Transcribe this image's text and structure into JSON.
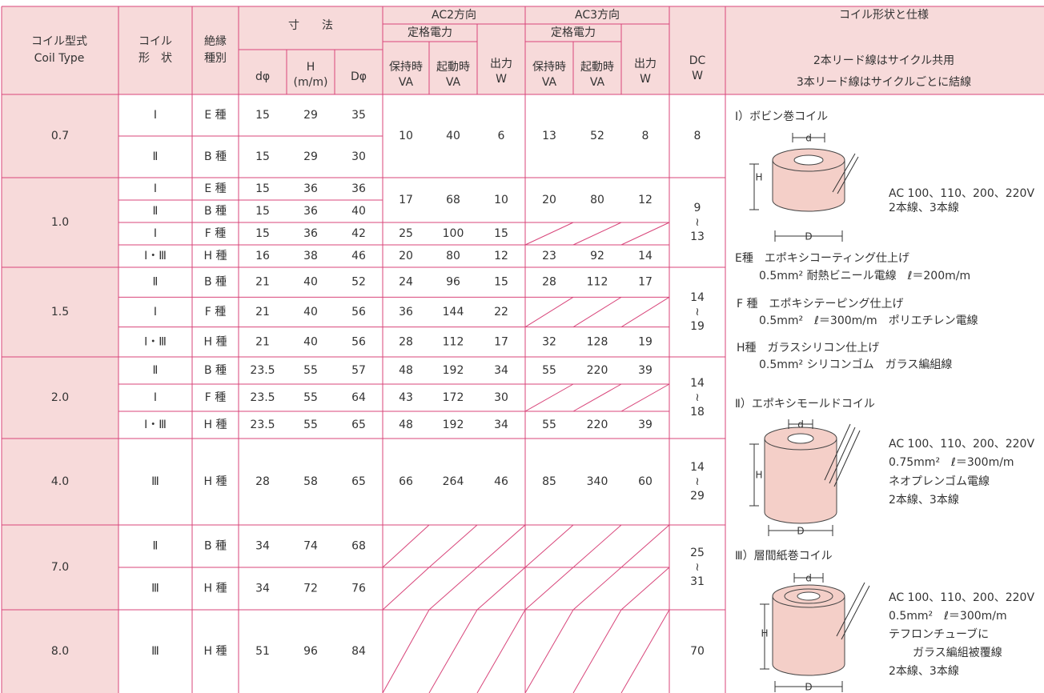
{
  "header": {
    "coil_type": [
      "コイル型式",
      "Coil Type"
    ],
    "coil_shape": [
      "コイル",
      "形　状"
    ],
    "insulation": [
      "絶縁",
      "種別"
    ],
    "dimensions": "寸　　法",
    "d_small": "dφ",
    "h": [
      "H",
      "(m/m)"
    ],
    "d_large": "Dφ",
    "ac2": "AC2方向",
    "ac3": "AC3方向",
    "rated": "定格電力",
    "hold": [
      "保持時",
      "VA"
    ],
    "start": [
      "起動時",
      "VA"
    ],
    "output": [
      "出力",
      "W"
    ],
    "dc": [
      "DC",
      "W"
    ]
  },
  "table": {
    "groups": [
      {
        "type": "0.7",
        "dc": [
          "8"
        ],
        "rows": [
          {
            "shape": "Ⅰ",
            "insulation": "E 種",
            "d": 15,
            "h": 29,
            "D": 35
          },
          {
            "shape": "Ⅱ",
            "insulation": "B 種",
            "d": 15,
            "h": 29,
            "D": 30
          }
        ],
        "power": [
          {
            "ac2": [
              10,
              40,
              6
            ],
            "ac3": [
              13,
              52,
              8
            ]
          }
        ]
      },
      {
        "type": "1.0",
        "dc": [
          "9",
          "≀",
          "13"
        ],
        "rows": [
          {
            "shape": "Ⅰ",
            "insulation": "E 種",
            "d": 15,
            "h": 36,
            "D": 36
          },
          {
            "shape": "Ⅱ",
            "insulation": "B 種",
            "d": 15,
            "h": 36,
            "D": 40
          },
          {
            "shape": "Ⅰ",
            "insulation": "F 種",
            "d": 15,
            "h": 36,
            "D": 42
          },
          {
            "shape": "Ⅰ・Ⅲ",
            "insulation": "H 種",
            "d": 16,
            "h": 38,
            "D": 46
          }
        ],
        "power": [
          {
            "ac2": [
              17,
              68,
              10
            ],
            "ac3": [
              20,
              80,
              12
            ]
          },
          {
            "ac2": [
              25,
              100,
              15
            ],
            "ac3": null
          },
          {
            "ac2": [
              20,
              80,
              12
            ],
            "ac3": [
              23,
              92,
              14
            ]
          }
        ]
      },
      {
        "type": "1.5",
        "dc": [
          "14",
          "≀",
          "19"
        ],
        "rows": [
          {
            "shape": "Ⅱ",
            "insulation": "B 種",
            "d": 21,
            "h": 40,
            "D": 52
          },
          {
            "shape": "Ⅰ",
            "insulation": "F 種",
            "d": 21,
            "h": 40,
            "D": 56
          },
          {
            "shape": "Ⅰ・Ⅲ",
            "insulation": "H 種",
            "d": 21,
            "h": 40,
            "D": 56
          }
        ],
        "power": [
          {
            "ac2": [
              24,
              96,
              15
            ],
            "ac3": [
              28,
              112,
              17
            ]
          },
          {
            "ac2": [
              36,
              144,
              22
            ],
            "ac3": null
          },
          {
            "ac2": [
              28,
              112,
              17
            ],
            "ac3": [
              32,
              128,
              19
            ]
          }
        ]
      },
      {
        "type": "2.0",
        "dc": [
          "14",
          "≀",
          "18"
        ],
        "rows": [
          {
            "shape": "Ⅱ",
            "insulation": "B 種",
            "d": 23.5,
            "h": 55,
            "D": 57
          },
          {
            "shape": "Ⅰ",
            "insulation": "F 種",
            "d": 23.5,
            "h": 55,
            "D": 64
          },
          {
            "shape": "Ⅰ・Ⅲ",
            "insulation": "H 種",
            "d": 23.5,
            "h": 55,
            "D": 65
          }
        ],
        "power": [
          {
            "ac2": [
              48,
              192,
              34
            ],
            "ac3": [
              55,
              220,
              39
            ]
          },
          {
            "ac2": [
              43,
              172,
              30
            ],
            "ac3": null
          },
          {
            "ac2": [
              48,
              192,
              34
            ],
            "ac3": [
              55,
              220,
              39
            ]
          }
        ]
      },
      {
        "type": "4.0",
        "dc": [
          "14",
          "≀",
          "29"
        ],
        "rows": [
          {
            "shape": "Ⅲ",
            "insulation": "H 種",
            "d": 28,
            "h": 58,
            "D": 65
          }
        ],
        "power": [
          {
            "ac2": [
              66,
              264,
              46
            ],
            "ac3": [
              85,
              340,
              60
            ]
          }
        ]
      },
      {
        "type": "7.0",
        "dc": [
          "25",
          "≀",
          "31"
        ],
        "rows": [
          {
            "shape": "Ⅱ",
            "insulation": "B 種",
            "d": 34,
            "h": 74,
            "D": 68
          },
          {
            "shape": "Ⅲ",
            "insulation": "H 種",
            "d": 34,
            "h": 72,
            "D": 76
          }
        ],
        "power": [
          {
            "ac2": null,
            "ac3": null
          },
          {
            "ac2": null,
            "ac3": null
          }
        ]
      },
      {
        "type": "8.0",
        "dc": [
          "70"
        ],
        "rows": [
          {
            "shape": "Ⅲ",
            "insulation": "H 種",
            "d": 51,
            "h": 96,
            "D": 84
          }
        ],
        "power": [
          {
            "ac2": null,
            "ac3": null
          }
        ]
      }
    ]
  },
  "spec": {
    "title": "コイル形状と仕様",
    "notes": [
      "2本リード線はサイクル共用",
      "3本リード線はサイクルごとに結線"
    ],
    "items": [
      {
        "heading": "Ⅰ）ボビン巻コイル",
        "lines": [
          "AC 100、110、200、220V",
          "2本線、3本線"
        ]
      },
      {
        "heading": "Ⅱ）エポキシモールドコイル",
        "lines": [
          "AC 100、110、200、220V",
          "0.75mm²　ℓ＝300m/m",
          "ネオプレンゴム電線",
          "2本線、3本線"
        ]
      },
      {
        "heading": "Ⅲ）層間紙巻コイル",
        "lines": [
          "AC 100、110、200、220V",
          "0.5mm²　ℓ＝300m/m",
          "テフロンチューブに",
          "ガラス編組被覆線",
          "2本線、3本線"
        ]
      }
    ],
    "finishes": [
      [
        "E種　エポキシコーティング仕上げ",
        "0.5mm² 耐熱ビニール電線　ℓ＝200m/m"
      ],
      [
        "F 種　エポキシテーピング仕上げ",
        "0.5mm²　ℓ＝300m/m　ポリエチレン電線"
      ],
      [
        "H種　ガラスシリコン仕上げ",
        "0.5mm² シリコンゴム　ガラス編組線"
      ]
    ],
    "dims": [
      "d",
      "H",
      "D"
    ]
  }
}
